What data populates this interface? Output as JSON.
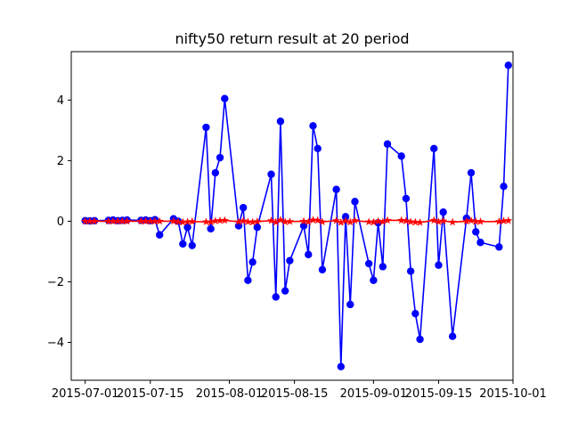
{
  "chart_data": {
    "type": "line",
    "title": "nifty50 return result at 20 period",
    "xlabel": "",
    "ylabel": "",
    "x_axis_kind": "date",
    "xlim": [
      "2015-06-28",
      "2015-10-01"
    ],
    "ylim": [
      -5.25,
      5.6
    ],
    "x_ticks": [
      "2015-07-01",
      "2015-07-15",
      "2015-08-01",
      "2015-08-15",
      "2015-09-01",
      "2015-09-15",
      "2015-10-01"
    ],
    "y_ticks": [
      -4,
      -2,
      0,
      2,
      4
    ],
    "grid": false,
    "legend": "none",
    "series": [
      {
        "color": "#0000ff",
        "marker": "circle",
        "points": [
          [
            "2015-07-01",
            0.02
          ],
          [
            "2015-07-02",
            0.01
          ],
          [
            "2015-07-03",
            0.02
          ],
          [
            "2015-07-06",
            0.03
          ],
          [
            "2015-07-07",
            0.04
          ],
          [
            "2015-07-08",
            0.02
          ],
          [
            "2015-07-09",
            0.03
          ],
          [
            "2015-07-10",
            0.04
          ],
          [
            "2015-07-13",
            0.03
          ],
          [
            "2015-07-14",
            0.04
          ],
          [
            "2015-07-15",
            0.02
          ],
          [
            "2015-07-16",
            0.05
          ],
          [
            "2015-07-17",
            -0.45
          ],
          [
            "2015-07-20",
            0.08
          ],
          [
            "2015-07-21",
            0.0
          ],
          [
            "2015-07-22",
            -0.75
          ],
          [
            "2015-07-23",
            -0.2
          ],
          [
            "2015-07-24",
            -0.8
          ],
          [
            "2015-07-27",
            3.1
          ],
          [
            "2015-07-28",
            -0.25
          ],
          [
            "2015-07-29",
            1.6
          ],
          [
            "2015-07-30",
            2.1
          ],
          [
            "2015-07-31",
            4.05
          ],
          [
            "2015-08-03",
            -0.15
          ],
          [
            "2015-08-04",
            0.45
          ],
          [
            "2015-08-05",
            -1.95
          ],
          [
            "2015-08-06",
            -1.35
          ],
          [
            "2015-08-07",
            -0.2
          ],
          [
            "2015-08-10",
            1.55
          ],
          [
            "2015-08-11",
            -2.5
          ],
          [
            "2015-08-12",
            3.3
          ],
          [
            "2015-08-13",
            -2.3
          ],
          [
            "2015-08-14",
            -1.3
          ],
          [
            "2015-08-17",
            -0.15
          ],
          [
            "2015-08-18",
            -1.1
          ],
          [
            "2015-08-19",
            3.15
          ],
          [
            "2015-08-20",
            2.4
          ],
          [
            "2015-08-21",
            -1.6
          ],
          [
            "2015-08-24",
            1.05
          ],
          [
            "2015-08-25",
            -4.8
          ],
          [
            "2015-08-26",
            0.15
          ],
          [
            "2015-08-27",
            -2.75
          ],
          [
            "2015-08-28",
            0.65
          ],
          [
            "2015-08-31",
            -1.4
          ],
          [
            "2015-09-01",
            -1.95
          ],
          [
            "2015-09-02",
            -0.05
          ],
          [
            "2015-09-03",
            -1.5
          ],
          [
            "2015-09-04",
            2.55
          ],
          [
            "2015-09-07",
            2.15
          ],
          [
            "2015-09-08",
            0.75
          ],
          [
            "2015-09-09",
            -1.65
          ],
          [
            "2015-09-10",
            -3.05
          ],
          [
            "2015-09-11",
            -3.9
          ],
          [
            "2015-09-14",
            2.4
          ],
          [
            "2015-09-15",
            -1.45
          ],
          [
            "2015-09-16",
            0.3
          ],
          [
            "2015-09-18",
            -3.8
          ],
          [
            "2015-09-21",
            0.1
          ],
          [
            "2015-09-22",
            1.6
          ],
          [
            "2015-09-23",
            -0.35
          ],
          [
            "2015-09-24",
            -0.7
          ],
          [
            "2015-09-28",
            -0.85
          ],
          [
            "2015-09-29",
            1.15
          ],
          [
            "2015-09-30",
            5.15
          ]
        ]
      },
      {
        "color": "#ff0000",
        "marker": "star",
        "points": [
          [
            "2015-07-01",
            0.0
          ],
          [
            "2015-07-02",
            0.0
          ],
          [
            "2015-07-03",
            0.0
          ],
          [
            "2015-07-06",
            0.0
          ],
          [
            "2015-07-07",
            0.0
          ],
          [
            "2015-07-08",
            0.0
          ],
          [
            "2015-07-09",
            0.0
          ],
          [
            "2015-07-10",
            0.0
          ],
          [
            "2015-07-13",
            0.0
          ],
          [
            "2015-07-14",
            0.0
          ],
          [
            "2015-07-15",
            0.0
          ],
          [
            "2015-07-16",
            0.0
          ],
          [
            "2015-07-17",
            0.0
          ],
          [
            "2015-07-20",
            0.0
          ],
          [
            "2015-07-21",
            -0.02
          ],
          [
            "2015-07-22",
            -0.03
          ],
          [
            "2015-07-23",
            -0.02
          ],
          [
            "2015-07-24",
            -0.01
          ],
          [
            "2015-07-27",
            -0.02
          ],
          [
            "2015-07-28",
            -0.03
          ],
          [
            "2015-07-29",
            0.01
          ],
          [
            "2015-07-30",
            0.02
          ],
          [
            "2015-07-31",
            0.03
          ],
          [
            "2015-08-03",
            -0.02
          ],
          [
            "2015-08-04",
            0.01
          ],
          [
            "2015-08-05",
            -0.02
          ],
          [
            "2015-08-06",
            -0.03
          ],
          [
            "2015-08-07",
            -0.01
          ],
          [
            "2015-08-10",
            0.02
          ],
          [
            "2015-08-11",
            -0.03
          ],
          [
            "2015-08-12",
            0.04
          ],
          [
            "2015-08-13",
            -0.02
          ],
          [
            "2015-08-14",
            -0.01
          ],
          [
            "2015-08-17",
            0.0
          ],
          [
            "2015-08-18",
            -0.02
          ],
          [
            "2015-08-19",
            0.04
          ],
          [
            "2015-08-20",
            0.03
          ],
          [
            "2015-08-21",
            -0.02
          ],
          [
            "2015-08-24",
            0.02
          ],
          [
            "2015-08-25",
            -0.04
          ],
          [
            "2015-08-26",
            0.01
          ],
          [
            "2015-08-27",
            -0.03
          ],
          [
            "2015-08-28",
            0.02
          ],
          [
            "2015-08-31",
            -0.02
          ],
          [
            "2015-09-01",
            -0.03
          ],
          [
            "2015-09-02",
            0.0
          ],
          [
            "2015-09-03",
            -0.02
          ],
          [
            "2015-09-04",
            0.03
          ],
          [
            "2015-09-07",
            0.03
          ],
          [
            "2015-09-08",
            0.01
          ],
          [
            "2015-09-09",
            -0.02
          ],
          [
            "2015-09-10",
            -0.03
          ],
          [
            "2015-09-11",
            -0.04
          ],
          [
            "2015-09-14",
            0.03
          ],
          [
            "2015-09-15",
            -0.02
          ],
          [
            "2015-09-16",
            0.01
          ],
          [
            "2015-09-18",
            -0.03
          ],
          [
            "2015-09-21",
            0.0
          ],
          [
            "2015-09-22",
            0.02
          ],
          [
            "2015-09-23",
            -0.01
          ],
          [
            "2015-09-24",
            -0.01
          ],
          [
            "2015-09-28",
            -0.01
          ],
          [
            "2015-09-29",
            0.01
          ],
          [
            "2015-09-30",
            0.02
          ]
        ]
      }
    ]
  }
}
